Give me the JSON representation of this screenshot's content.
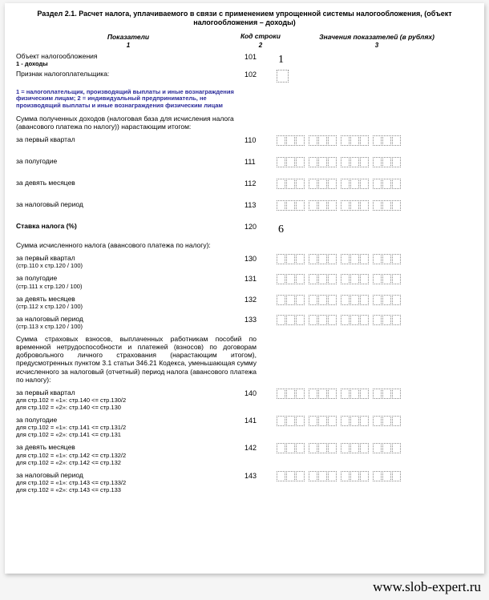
{
  "title": "Раздел 2.1. Расчет налога, уплачиваемого в связи с применением упрощенной системы налогообложения, (объект налогообложения – доходы)",
  "columns": {
    "col1": "Показатели",
    "col2": "Код строки",
    "col3": "Значения показателей (в рублях)",
    "n1": "1",
    "n2": "2",
    "n3": "3"
  },
  "rows": {
    "obj": {
      "label": "Объект налогообложения",
      "sub": "1 - доходы",
      "code": "101",
      "value": "1"
    },
    "sign": {
      "label": "Признак налогоплательщика:",
      "code": "102"
    },
    "note1": "1 = налогоплательщик, производящий выплаты и иные вознаграждения физическим лицам;\n2 = индивидуальный предприниматель, не производящий выплаты и иные вознаграждения физическим лицам",
    "sec1": "Сумма полученных доходов (налоговая база для исчисления налога (авансового платежа по налогу)) нарастающим итогом:",
    "q1": {
      "label": "за первый квартал",
      "code": "110"
    },
    "hy": {
      "label": "за полугодие",
      "code": "111"
    },
    "m9": {
      "label": "за девять месяцев",
      "code": "112"
    },
    "yr": {
      "label": "за налоговый период",
      "code": "113"
    },
    "rate": {
      "label": "Ставка налога (%)",
      "code": "120",
      "value": "6"
    },
    "sec2": "Сумма исчисленного налога (авансового платежа по налогу):",
    "cq1": {
      "label": "за первый квартал",
      "sub": "(стр.110 x стр.120 / 100)",
      "code": "130"
    },
    "chy": {
      "label": "за полугодие",
      "sub": "(стр.111 x стр.120 / 100)",
      "code": "131"
    },
    "cm9": {
      "label": "за девять месяцев",
      "sub": "(стр.112 x стр.120 / 100)",
      "code": "132"
    },
    "cyr": {
      "label": "за налоговый период",
      "sub": "(стр.113 x стр.120 / 100)",
      "code": "133"
    },
    "sec3": "Сумма страховых взносов, выплаченных работникам пособий по временной нетрудоспособности и платежей (взносов) по договорам добровольного личного страхования (нарастающим итогом), предусмотренных пунктом 3.1 статьи 346.21 Кодекса, уменьшающая сумму исчисленного за налоговый (отчетный) период налога (авансового платежа по налогу):",
    "dq1": {
      "label": "за первый квартал",
      "sub1": "для стр.102 = «1»: стр.140 <= стр.130/2",
      "sub2": "для стр.102 = «2»: стр.140 <= стр.130",
      "code": "140"
    },
    "dhy": {
      "label": "за полугодие",
      "sub1": "для стр.102 = «1»: стр.141 <= стр.131/2",
      "sub2": "для стр.102 = «2»: стр.141 <= стр.131",
      "code": "141"
    },
    "dm9": {
      "label": "за девять месяцев",
      "sub1": "для стр.102 = «1»: стр.142 <= стр.132/2",
      "sub2": "для стр.102 = «2»: стр.142 <= стр.132",
      "code": "142"
    },
    "dyr": {
      "label": "за налоговый период",
      "sub1": "для стр.102 = «1»: стр.143 <= стр.133/2",
      "sub2": "для стр.102 = «2»: стр.143 <= стр.133",
      "code": "143"
    }
  },
  "watermark": "www.slob-expert.ru",
  "style": {
    "box_groups": [
      3,
      3,
      3,
      3
    ],
    "cell_border": "#888888",
    "note_color": "#2a2a9a",
    "background": "#ffffff"
  }
}
